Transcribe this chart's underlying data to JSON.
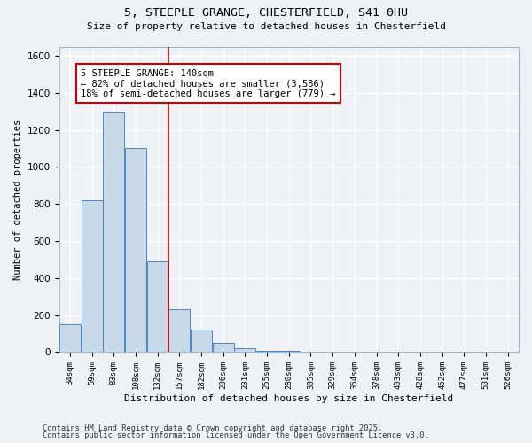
{
  "title1": "5, STEEPLE GRANGE, CHESTERFIELD, S41 0HU",
  "title2": "Size of property relative to detached houses in Chesterfield",
  "xlabel": "Distribution of detached houses by size in Chesterfield",
  "ylabel": "Number of detached properties",
  "bin_labels": [
    "34sqm",
    "59sqm",
    "83sqm",
    "108sqm",
    "132sqm",
    "157sqm",
    "182sqm",
    "206sqm",
    "231sqm",
    "255sqm",
    "280sqm",
    "305sqm",
    "329sqm",
    "354sqm",
    "378sqm",
    "403sqm",
    "428sqm",
    "452sqm",
    "477sqm",
    "501sqm",
    "526sqm"
  ],
  "bar_heights": [
    150,
    820,
    1300,
    1100,
    490,
    230,
    120,
    50,
    20,
    5,
    5,
    0,
    0,
    0,
    0,
    0,
    0,
    0,
    0,
    0,
    0
  ],
  "bar_color": "#c8d9ea",
  "bar_edge_color": "#4f86c0",
  "red_line_x": 4.5,
  "annotation_text": "5 STEEPLE GRANGE: 140sqm\n← 82% of detached houses are smaller (3,586)\n18% of semi-detached houses are larger (779) →",
  "annotation_box_color": "#ffffff",
  "annotation_box_edge": "#cc0000",
  "footer1": "Contains HM Land Registry data © Crown copyright and database right 2025.",
  "footer2": "Contains public sector information licensed under the Open Government Licence v3.0.",
  "ylim": [
    0,
    1650
  ],
  "background_color": "#eef2f7",
  "grid_color": "#ffffff"
}
